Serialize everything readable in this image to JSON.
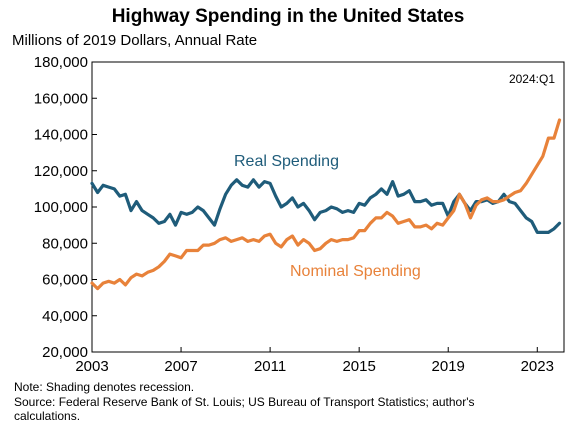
{
  "chart_data": {
    "type": "line",
    "title": "Highway Spending in the United States",
    "subtitle": "Millions of 2019 Dollars, Annual Rate",
    "stamp": "2024:Q1",
    "x_range": [
      2003,
      2024.2
    ],
    "ylim": [
      20000,
      180000
    ],
    "y_ticks": [
      20000,
      40000,
      60000,
      80000,
      100000,
      120000,
      140000,
      160000,
      180000
    ],
    "y_tick_labels": [
      "20,000",
      "40,000",
      "60,000",
      "80,000",
      "100,000",
      "120,000",
      "140,000",
      "160,000",
      "180,000"
    ],
    "x_ticks": [
      2003,
      2007,
      2011,
      2015,
      2019,
      2023
    ],
    "x_tick_labels": [
      "2003",
      "2007",
      "2011",
      "2015",
      "2019",
      "2023"
    ],
    "grid": false,
    "series": [
      {
        "name": "Real Spending",
        "color": "#1f5c7a",
        "x": [
          2003.0,
          2003.25,
          2003.5,
          2003.75,
          2004.0,
          2004.25,
          2004.5,
          2004.75,
          2005.0,
          2005.25,
          2005.5,
          2005.75,
          2006.0,
          2006.25,
          2006.5,
          2006.75,
          2007.0,
          2007.25,
          2007.5,
          2007.75,
          2008.0,
          2008.25,
          2008.5,
          2008.75,
          2009.0,
          2009.25,
          2009.5,
          2009.75,
          2010.0,
          2010.25,
          2010.5,
          2010.75,
          2011.0,
          2011.25,
          2011.5,
          2011.75,
          2012.0,
          2012.25,
          2012.5,
          2012.75,
          2013.0,
          2013.25,
          2013.5,
          2013.75,
          2014.0,
          2014.25,
          2014.5,
          2014.75,
          2015.0,
          2015.25,
          2015.5,
          2015.75,
          2016.0,
          2016.25,
          2016.5,
          2016.75,
          2017.0,
          2017.25,
          2017.5,
          2017.75,
          2018.0,
          2018.25,
          2018.5,
          2018.75,
          2019.0,
          2019.25,
          2019.5,
          2019.75,
          2020.0,
          2020.25,
          2020.5,
          2020.75,
          2021.0,
          2021.25,
          2021.5,
          2021.75,
          2022.0,
          2022.25,
          2022.5,
          2022.75,
          2023.0,
          2023.25,
          2023.5,
          2023.75,
          2024.0
        ],
        "y": [
          113000,
          108000,
          112000,
          111000,
          110000,
          106000,
          107000,
          98000,
          103000,
          98000,
          96000,
          94000,
          91000,
          92000,
          96000,
          90000,
          97000,
          96000,
          97000,
          100000,
          98000,
          94000,
          90000,
          99000,
          107000,
          112000,
          115000,
          112000,
          111000,
          115000,
          111000,
          114000,
          113000,
          106000,
          100000,
          102000,
          105000,
          100000,
          102000,
          98000,
          93000,
          97000,
          98000,
          100000,
          99000,
          97000,
          98000,
          97000,
          102000,
          101000,
          105000,
          107000,
          110000,
          107000,
          114000,
          106000,
          107000,
          109000,
          103000,
          103000,
          104000,
          101000,
          102000,
          102000,
          95000,
          103000,
          107000,
          102000,
          98000,
          103000,
          103000,
          104000,
          102000,
          103000,
          107000,
          103000,
          102000,
          98000,
          94000,
          92000,
          86000,
          86000,
          86000,
          88000,
          91000
        ]
      },
      {
        "name": "Nominal Spending",
        "color": "#e8823a",
        "x": [
          2003.0,
          2003.25,
          2003.5,
          2003.75,
          2004.0,
          2004.25,
          2004.5,
          2004.75,
          2005.0,
          2005.25,
          2005.5,
          2005.75,
          2006.0,
          2006.25,
          2006.5,
          2006.75,
          2007.0,
          2007.25,
          2007.5,
          2007.75,
          2008.0,
          2008.25,
          2008.5,
          2008.75,
          2009.0,
          2009.25,
          2009.5,
          2009.75,
          2010.0,
          2010.25,
          2010.5,
          2010.75,
          2011.0,
          2011.25,
          2011.5,
          2011.75,
          2012.0,
          2012.25,
          2012.5,
          2012.75,
          2013.0,
          2013.25,
          2013.5,
          2013.75,
          2014.0,
          2014.25,
          2014.5,
          2014.75,
          2015.0,
          2015.25,
          2015.5,
          2015.75,
          2016.0,
          2016.25,
          2016.5,
          2016.75,
          2017.0,
          2017.25,
          2017.5,
          2017.75,
          2018.0,
          2018.25,
          2018.5,
          2018.75,
          2019.0,
          2019.25,
          2019.5,
          2019.75,
          2020.0,
          2020.25,
          2020.5,
          2020.75,
          2021.0,
          2021.25,
          2021.5,
          2021.75,
          2022.0,
          2022.25,
          2022.5,
          2022.75,
          2023.0,
          2023.25,
          2023.5,
          2023.75,
          2024.0
        ],
        "y": [
          58000,
          55000,
          58000,
          59000,
          58000,
          60000,
          57000,
          61000,
          63000,
          62000,
          64000,
          65000,
          67000,
          70000,
          74000,
          73000,
          72000,
          76000,
          76000,
          76000,
          79000,
          79000,
          80000,
          82000,
          83000,
          81000,
          82000,
          83000,
          81000,
          82000,
          81000,
          84000,
          85000,
          80000,
          78000,
          82000,
          84000,
          79000,
          82000,
          80000,
          76000,
          77000,
          80000,
          82000,
          81000,
          82000,
          82000,
          83000,
          87000,
          87000,
          91000,
          94000,
          94000,
          97000,
          95000,
          91000,
          92000,
          93000,
          89000,
          89000,
          90000,
          88000,
          91000,
          90000,
          94000,
          98000,
          107000,
          102000,
          94000,
          101000,
          104000,
          105000,
          103000,
          103000,
          104000,
          106000,
          108000,
          109000,
          113000,
          118000,
          123000,
          128000,
          138000,
          138000,
          148000
        ]
      }
    ]
  },
  "notes": {
    "line1": "Note: Shading denotes recession.",
    "line2": "Source: Federal Reserve Bank of St. Louis; US Bureau of Transport Statistics; author's",
    "line3": "calculations."
  }
}
